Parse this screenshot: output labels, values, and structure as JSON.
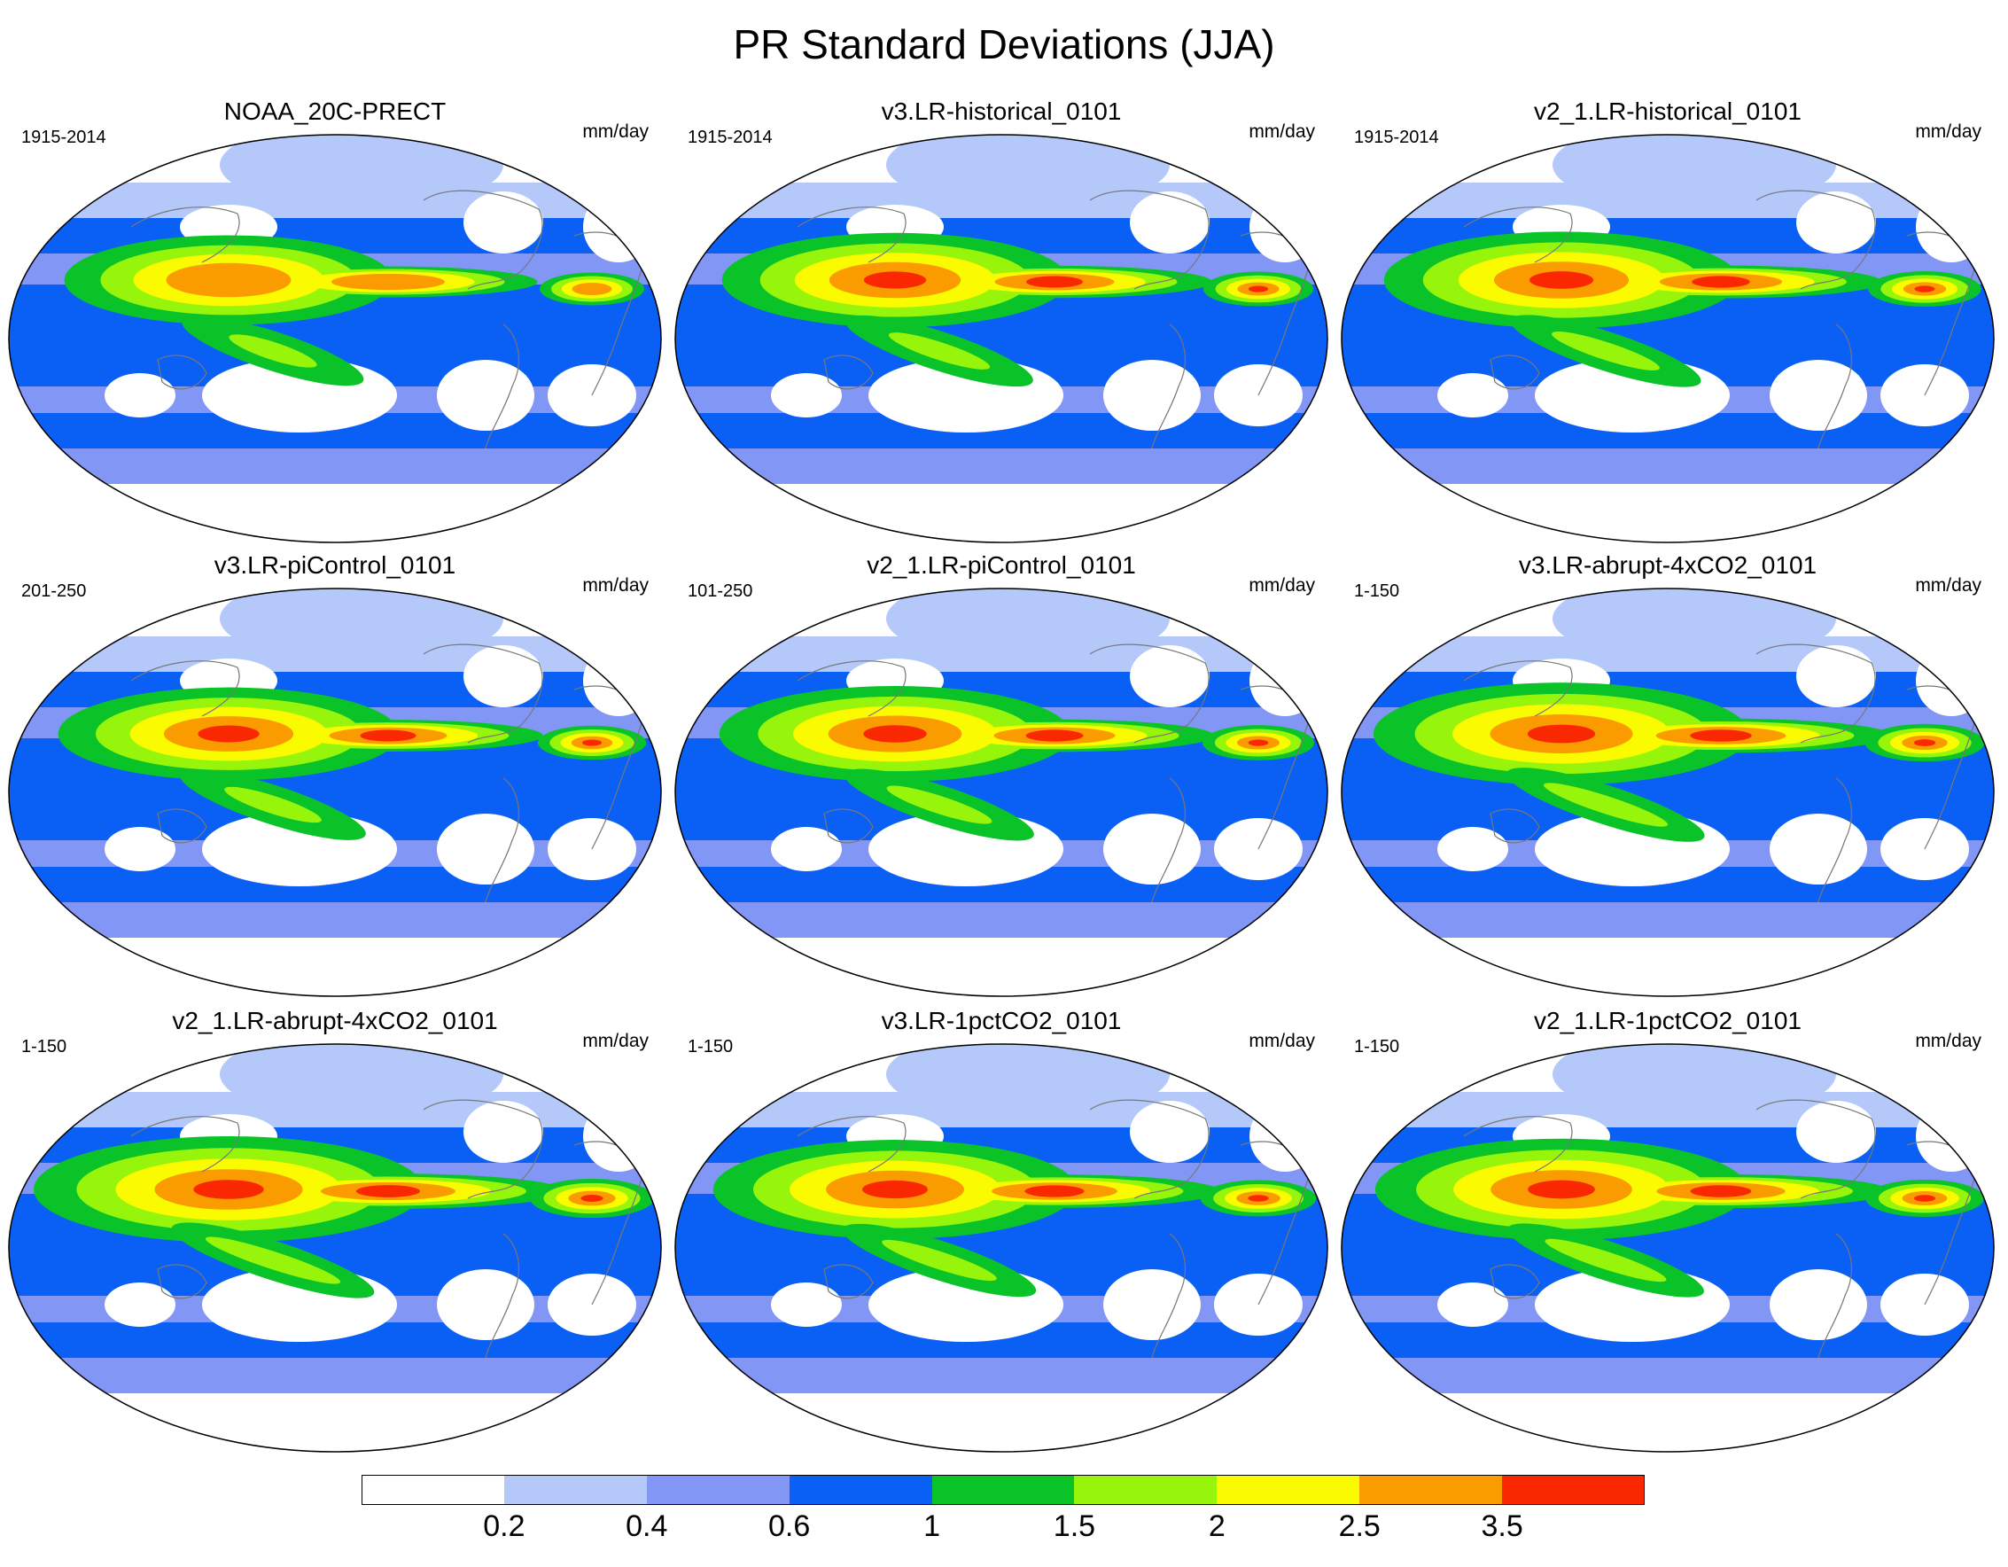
{
  "title": "PR Standard Deviations (JJA)",
  "units": "mm/day",
  "panels": [
    {
      "title": "NOAA_20C-PRECT",
      "period": "1915-2014",
      "intensity": 0.65
    },
    {
      "title": "v3.LR-historical_0101",
      "period": "1915-2014",
      "intensity": 0.75
    },
    {
      "title": "v2_1.LR-historical_0101",
      "period": "1915-2014",
      "intensity": 0.8
    },
    {
      "title": "v3.LR-piControl_0101",
      "period": "201-250",
      "intensity": 0.72
    },
    {
      "title": "v2_1.LR-piControl_0101",
      "period": "101-250",
      "intensity": 0.78
    },
    {
      "title": "v3.LR-abrupt-4xCO2_0101",
      "period": "1-150",
      "intensity": 0.92
    },
    {
      "title": "v2_1.LR-abrupt-4xCO2_0101",
      "period": "1-150",
      "intensity": 1.0
    },
    {
      "title": "v3.LR-1pctCO2_0101",
      "period": "1-150",
      "intensity": 0.85
    },
    {
      "title": "v2_1.LR-1pctCO2_0101",
      "period": "1-150",
      "intensity": 0.9
    }
  ],
  "colorbar": {
    "colors": [
      "#ffffff",
      "#b4c8fa",
      "#8296f5",
      "#0a5ff5",
      "#0ac328",
      "#96f50a",
      "#fafa00",
      "#fa9b00",
      "#fa2800"
    ],
    "labels": [
      "0.2",
      "0.4",
      "0.6",
      "1",
      "1.5",
      "2",
      "2.5",
      "3.5"
    ]
  }
}
